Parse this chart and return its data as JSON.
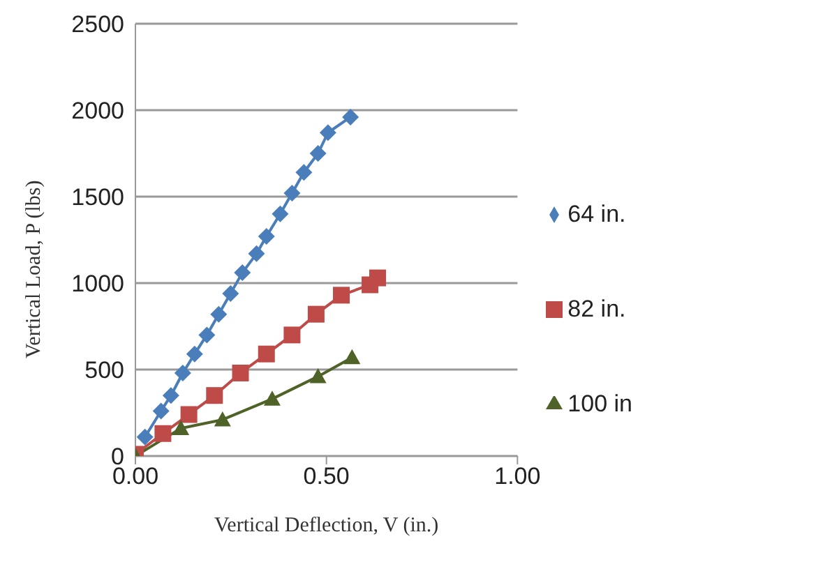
{
  "chart_data": {
    "type": "line",
    "xlabel": "Vertical Deflection, V (in.)",
    "ylabel": "Vertical Load, P (lbs)",
    "xlim": [
      0,
      1
    ],
    "xticks": [
      {
        "value": 0,
        "label": "0.00"
      },
      {
        "value": 0.5,
        "label": "0.50"
      },
      {
        "value": 1,
        "label": "1.00"
      }
    ],
    "ylim": [
      0,
      2500
    ],
    "yticks": [
      0,
      500,
      1000,
      1500,
      2000,
      2500
    ],
    "grid": "y",
    "legend": "right",
    "series": [
      {
        "name": "64 in.",
        "color": "#4a7ebb",
        "marker": "diamond",
        "x": [
          0.025,
          0.067,
          0.093,
          0.124,
          0.155,
          0.187,
          0.218,
          0.249,
          0.28,
          0.317,
          0.343,
          0.379,
          0.41,
          0.441,
          0.478,
          0.504,
          0.563
        ],
        "values": [
          110,
          260,
          350,
          480,
          590,
          700,
          820,
          940,
          1060,
          1170,
          1270,
          1400,
          1520,
          1640,
          1750,
          1870,
          1960
        ]
      },
      {
        "name": "82 in.",
        "color": "#be4b48",
        "marker": "square",
        "x": [
          0,
          0.072,
          0.14,
          0.207,
          0.275,
          0.343,
          0.41,
          0.473,
          0.539,
          0.614,
          0.634
        ],
        "values": [
          10,
          130,
          240,
          350,
          480,
          590,
          700,
          820,
          930,
          990,
          1030
        ]
      },
      {
        "name": "100 in",
        "color": "#4f6228",
        "marker": "triangle",
        "x": [
          0,
          0.119,
          0.228,
          0.358,
          0.478,
          0.567
        ],
        "values": [
          0,
          160,
          210,
          330,
          460,
          570
        ]
      }
    ]
  }
}
